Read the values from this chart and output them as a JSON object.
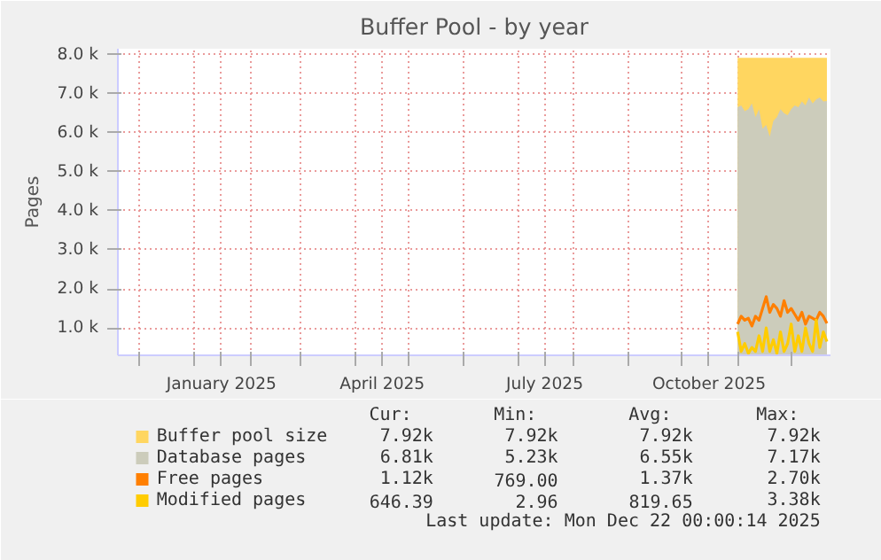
{
  "chart_data": {
    "type": "area",
    "title": "Buffer Pool - by year",
    "ylabel": "Pages",
    "x": [
      "2025-11-01",
      "2025-11-03",
      "2025-11-05",
      "2025-11-07",
      "2025-11-09",
      "2025-11-11",
      "2025-11-13",
      "2025-11-15",
      "2025-11-17",
      "2025-11-19",
      "2025-11-21",
      "2025-11-23",
      "2025-11-25",
      "2025-11-27",
      "2025-11-29",
      "2025-12-01",
      "2025-12-03",
      "2025-12-05",
      "2025-12-07",
      "2025-12-09",
      "2025-12-11",
      "2025-12-13",
      "2025-12-15",
      "2025-12-17",
      "2025-12-19",
      "2025-12-21"
    ],
    "series": [
      {
        "name": "Buffer pool size",
        "color": "#ffd660",
        "values": [
          7920,
          7920,
          7920,
          7920,
          7920,
          7920,
          7920,
          7920,
          7920,
          7920,
          7920,
          7920,
          7920,
          7920,
          7920,
          7920,
          7920,
          7920,
          7920,
          7920,
          7920,
          7920,
          7920,
          7920,
          7920,
          7920
        ]
      },
      {
        "name": "Database pages",
        "color": "#ccccbb",
        "values": [
          6650,
          6700,
          6550,
          6600,
          6750,
          6400,
          6600,
          6100,
          6200,
          5900,
          6300,
          6400,
          6600,
          6500,
          6450,
          6600,
          6700,
          6650,
          6800,
          6700,
          6900,
          6750,
          6850,
          6900,
          6800,
          6810
        ]
      },
      {
        "name": "Free pages",
        "type": "line",
        "color": "#ff7f00",
        "values": [
          1100,
          1300,
          1200,
          1250,
          1050,
          1300,
          1200,
          1500,
          1800,
          1400,
          1600,
          1500,
          1300,
          1700,
          1400,
          1500,
          1350,
          1200,
          1400,
          1100,
          1300,
          1250,
          1200,
          1400,
          1300,
          1120
        ]
      },
      {
        "name": "Modified pages",
        "type": "line",
        "color": "#ffcc00",
        "values": [
          900,
          400,
          600,
          350,
          500,
          400,
          800,
          400,
          1000,
          400,
          700,
          350,
          900,
          400,
          600,
          1100,
          400,
          800,
          400,
          1000,
          600,
          400,
          1200,
          500,
          900,
          650
        ]
      }
    ],
    "xlim": [
      "2024-11-19",
      "2025-12-23"
    ],
    "xticks": [
      {
        "value": "2024-12-01",
        "label": null
      },
      {
        "value": "2025-01-01",
        "label": null
      },
      {
        "value": "2025-01-16",
        "label": "January 2025"
      },
      {
        "value": "2025-02-01",
        "label": null
      },
      {
        "value": "2025-03-01",
        "label": null
      },
      {
        "value": "2025-04-01",
        "label": null
      },
      {
        "value": "2025-04-16",
        "label": "April 2025"
      },
      {
        "value": "2025-05-01",
        "label": null
      },
      {
        "value": "2025-06-01",
        "label": null
      },
      {
        "value": "2025-07-01",
        "label": null
      },
      {
        "value": "2025-07-16",
        "label": "July 2025"
      },
      {
        "value": "2025-08-01",
        "label": null
      },
      {
        "value": "2025-09-01",
        "label": null
      },
      {
        "value": "2025-10-01",
        "label": null
      },
      {
        "value": "2025-10-16",
        "label": "October 2025"
      },
      {
        "value": "2025-11-01",
        "label": null
      },
      {
        "value": "2025-12-01",
        "label": null
      }
    ],
    "ylim": [
      300,
      8150
    ],
    "yticks": [
      {
        "value": 1000,
        "label": "1.0 k"
      },
      {
        "value": 2000,
        "label": "2.0 k"
      },
      {
        "value": 3000,
        "label": "3.0 k"
      },
      {
        "value": 4000,
        "label": "4.0 k"
      },
      {
        "value": 5000,
        "label": "5.0 k"
      },
      {
        "value": 6000,
        "label": "6.0 k"
      },
      {
        "value": 7000,
        "label": "7.0 k"
      },
      {
        "value": 8000,
        "label": "8.0 k"
      }
    ],
    "grid": true,
    "legend": "bottom",
    "annotations": [
      "Cur:",
      "Min:",
      "Avg:",
      "Max:",
      "7.92k",
      "7.92k",
      "7.92k",
      "7.92k",
      "6.81k",
      "5.23k",
      "6.55k",
      "7.17k",
      "1.12k",
      "769.00",
      "1.37k",
      "2.70k",
      "646.39",
      "2.96",
      "819.65",
      "3.38k",
      "Last update: Mon Dec 22 00:00:14 2025"
    ]
  }
}
